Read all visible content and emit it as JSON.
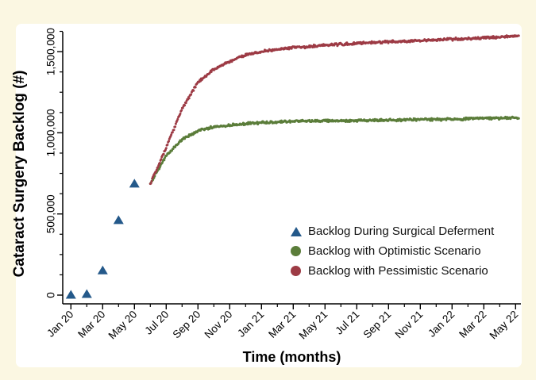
{
  "figure": {
    "background_color": "#fbf7e2",
    "panel_color": "#ffffff",
    "axis_color": "#000000"
  },
  "chart_data": {
    "type": "scatter",
    "title": "",
    "xlabel": "Time (months)",
    "ylabel": "Cataract Surgery Backlog (#)",
    "x_tick_labels": [
      "Jan 20",
      "Mar 20",
      "May 20",
      "Jul 20",
      "Sep 20",
      "Nov 20",
      "Jan 21",
      "Mar 21",
      "May 21",
      "Jul 21",
      "Sep 21",
      "Nov 21",
      "Jan 22",
      "Mar 22",
      "May 22"
    ],
    "x_minor_ticks": "monthly",
    "y_ticks": [
      0,
      500000,
      1000000,
      1500000
    ],
    "y_tick_labels": [
      "0",
      "500,000",
      "1,000,000",
      "1,500,000"
    ],
    "y_minor_tick_interval": 125000,
    "ylim": [
      0,
      1625000
    ],
    "legend_position": "inside-lower-right",
    "series": [
      {
        "name": "Backlog During Surgical Deferment",
        "marker": "triangle",
        "color": "#24598a",
        "months": [
          "Jan 20",
          "Feb 20",
          "Mar 20",
          "Apr 20",
          "May 20"
        ],
        "values": [
          0,
          5000,
          150000,
          460000,
          685000
        ]
      },
      {
        "name": "Backlog with Optimistic Scenario",
        "marker": "circle",
        "color": "#5b7d3a",
        "months": [
          "Jun 20",
          "Jul 20",
          "Aug 20",
          "Sep 20",
          "Oct 20",
          "Nov 20",
          "Dec 20",
          "Jan 21",
          "Feb 21",
          "Mar 21",
          "Apr 21",
          "May 21",
          "Jun 21",
          "Jul 21",
          "Aug 21",
          "Sep 21",
          "Oct 21",
          "Nov 21",
          "Dec 21",
          "Jan 22",
          "Feb 22",
          "Mar 22",
          "Apr 22",
          "May 22"
        ],
        "values": [
          686000,
          860000,
          960000,
          1012000,
          1037000,
          1048000,
          1056000,
          1063000,
          1067000,
          1070000,
          1072000,
          1074000,
          1075000,
          1076000,
          1077000,
          1078000,
          1080000,
          1081000,
          1082000,
          1084000,
          1086000,
          1088000,
          1090000,
          1092000
        ]
      },
      {
        "name": "Backlog with Pessimistic Scenario",
        "marker": "circle",
        "color": "#9d3b45",
        "months": [
          "Jun 20",
          "Jul 20",
          "Aug 20",
          "Sep 20",
          "Oct 20",
          "Nov 20",
          "Dec 20",
          "Jan 21",
          "Feb 21",
          "Mar 21",
          "Apr 21",
          "May 21",
          "Jun 21",
          "Jul 21",
          "Aug 21",
          "Sep 21",
          "Oct 21",
          "Nov 21",
          "Dec 21",
          "Jan 22",
          "Feb 22",
          "Mar 22",
          "Apr 22",
          "May 22"
        ],
        "values": [
          686000,
          910000,
          1150000,
          1310000,
          1390000,
          1440000,
          1480000,
          1500000,
          1515000,
          1525000,
          1532000,
          1540000,
          1546000,
          1551000,
          1556000,
          1560000,
          1564000,
          1568000,
          1572000,
          1576000,
          1580000,
          1585000,
          1590000,
          1597000
        ]
      }
    ]
  }
}
